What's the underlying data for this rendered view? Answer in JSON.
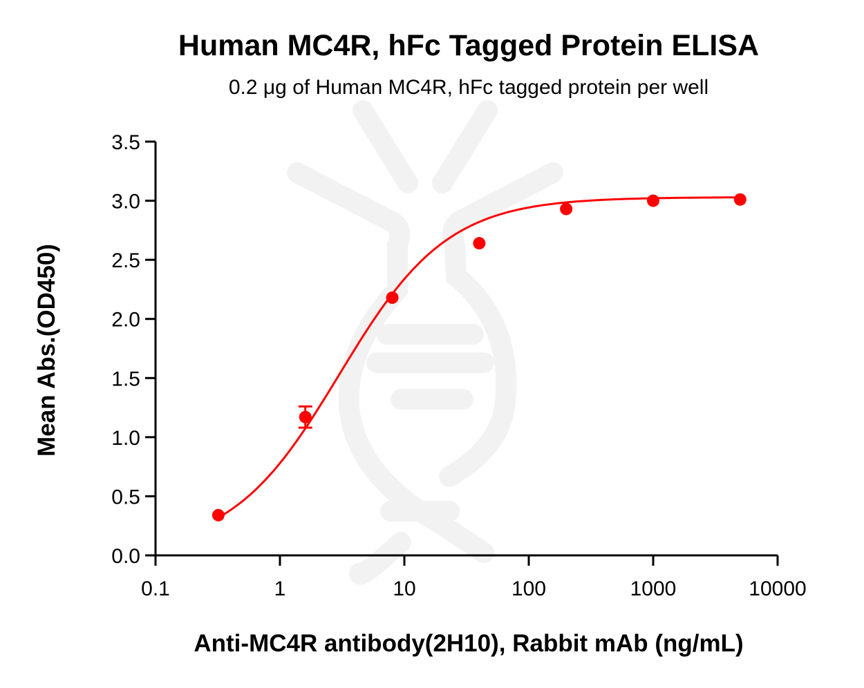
{
  "chart_data": {
    "type": "scatter",
    "title": "Human MC4R, hFc Tagged Protein ELISA",
    "subtitle": "0.2 μg of Human MC4R, hFc tagged protein per well",
    "xlabel": "Anti-MC4R antibody(2H10), Rabbit mAb (ng/mL)",
    "ylabel": "Mean Abs.(OD450)",
    "xscale": "log",
    "xlim": [
      0.1,
      10000
    ],
    "ylim": [
      0.0,
      3.5
    ],
    "xticks": [
      "0.1",
      "1",
      "10",
      "100",
      "1000",
      "10000"
    ],
    "yticks": [
      "0.0",
      "0.5",
      "1.0",
      "1.5",
      "2.0",
      "2.5",
      "3.0",
      "3.5"
    ],
    "grid": false,
    "legend": null,
    "series": [
      {
        "name": "Human MC4R, hFc",
        "color": "#ff0000",
        "x": [
          0.32,
          1.6,
          8,
          40,
          200,
          1000,
          5000
        ],
        "y": [
          0.34,
          1.17,
          2.18,
          2.64,
          2.93,
          3.0,
          3.01
        ],
        "error": [
          0.0,
          0.09,
          0.0,
          0.0,
          0.0,
          0.0,
          0.0
        ],
        "fit": {
          "model": "4PL",
          "bottom": 0.03,
          "top": 3.03,
          "ec50": 3.0,
          "hill": 1.0
        }
      }
    ],
    "watermark": "dna-logo"
  }
}
